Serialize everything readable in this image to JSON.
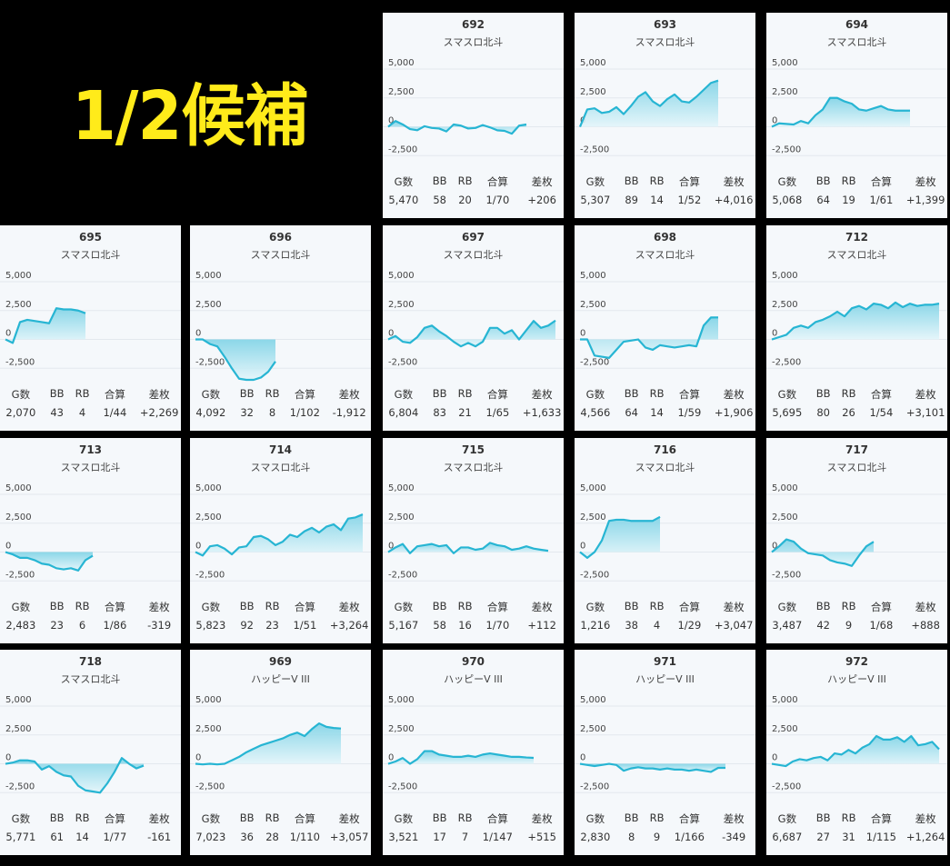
{
  "banner": "1/2候補",
  "stat_labels": [
    "G数",
    "BB",
    "RB",
    "合算",
    "差枚"
  ],
  "axis_ticks": [
    "5,000",
    "2,500",
    "0",
    "-2,500"
  ],
  "colors": {
    "line": "#27b5d3",
    "fill_top": "#7fd3e6",
    "fill_bottom": "#e3f5fa"
  },
  "chart_data": [
    {
      "type": "area",
      "machine": "692",
      "model": "スマスロ北斗",
      "ylim": [
        -3500,
        5000
      ],
      "stats": [
        "5,470",
        "58",
        "20",
        "1/70",
        "+206"
      ],
      "x": [
        0,
        1,
        2,
        3,
        4,
        5,
        6,
        7,
        8,
        9,
        10,
        11,
        12,
        13,
        14,
        15,
        16,
        17,
        18,
        19
      ],
      "values": [
        0,
        500,
        200,
        -200,
        -300,
        50,
        -100,
        -150,
        -400,
        200,
        100,
        -150,
        -100,
        150,
        -50,
        -300,
        -350,
        -600,
        100,
        200
      ]
    },
    {
      "type": "area",
      "machine": "693",
      "model": "スマスロ北斗",
      "ylim": [
        -3500,
        5000
      ],
      "stats": [
        "5,307",
        "89",
        "14",
        "1/52",
        "+4,016"
      ],
      "x": [
        0,
        1,
        2,
        3,
        4,
        5,
        6,
        7,
        8,
        9,
        10,
        11,
        12,
        13,
        14,
        15,
        16,
        17,
        18,
        19
      ],
      "values": [
        0,
        1500,
        1600,
        1200,
        1300,
        1700,
        1100,
        1800,
        2600,
        3000,
        2200,
        1800,
        2400,
        2800,
        2200,
        2100,
        2600,
        3200,
        3800,
        4000
      ]
    },
    {
      "type": "area",
      "machine": "694",
      "model": "スマスロ北斗",
      "ylim": [
        -3500,
        5000
      ],
      "stats": [
        "5,068",
        "64",
        "19",
        "1/61",
        "+1,399"
      ],
      "x": [
        0,
        1,
        2,
        3,
        4,
        5,
        6,
        7,
        8,
        9,
        10,
        11,
        12,
        13,
        14,
        15,
        16,
        17,
        18,
        19
      ],
      "values": [
        0,
        300,
        250,
        200,
        500,
        300,
        1000,
        1500,
        2500,
        2500,
        2200,
        2000,
        1500,
        1400,
        1600,
        1800,
        1500,
        1400,
        1400,
        1400
      ]
    },
    {
      "type": "area",
      "machine": "695",
      "model": "スマスロ北斗",
      "ylim": [
        -3500,
        5000
      ],
      "stats": [
        "2,070",
        "43",
        "4",
        "1/44",
        "+2,269"
      ],
      "x": [
        0,
        1,
        2,
        3,
        4,
        5,
        6,
        7,
        8,
        9,
        10,
        11
      ],
      "values": [
        0,
        -300,
        1500,
        1700,
        1600,
        1500,
        1400,
        2700,
        2600,
        2600,
        2500,
        2269
      ]
    },
    {
      "type": "area",
      "machine": "696",
      "model": "スマスロ北斗",
      "ylim": [
        -3500,
        5000
      ],
      "stats": [
        "4,092",
        "32",
        "8",
        "1/102",
        "-1,912"
      ],
      "x": [
        0,
        1,
        2,
        3,
        4,
        5,
        6,
        7,
        8,
        9,
        10,
        11
      ],
      "values": [
        0,
        0,
        -400,
        -600,
        -1500,
        -2500,
        -3400,
        -3500,
        -3500,
        -3300,
        -2800,
        -1912
      ]
    },
    {
      "type": "area",
      "machine": "697",
      "model": "スマスロ北斗",
      "ylim": [
        -3500,
        5000
      ],
      "stats": [
        "6,804",
        "83",
        "21",
        "1/65",
        "+1,633"
      ],
      "x": [
        0,
        1,
        2,
        3,
        4,
        5,
        6,
        7,
        8,
        9,
        10,
        11,
        12,
        13,
        14,
        15,
        16,
        17,
        18,
        19,
        20,
        21,
        22,
        23
      ],
      "values": [
        0,
        300,
        -200,
        -300,
        200,
        1000,
        1200,
        700,
        300,
        -200,
        -600,
        -300,
        -600,
        -200,
        1000,
        1000,
        500,
        800,
        0,
        800,
        1600,
        1000,
        1200,
        1633
      ]
    },
    {
      "type": "area",
      "machine": "698",
      "model": "スマスロ北斗",
      "ylim": [
        -3500,
        5000
      ],
      "stats": [
        "4,566",
        "64",
        "14",
        "1/59",
        "+1,906"
      ],
      "x": [
        0,
        1,
        2,
        3,
        4,
        5,
        6,
        7,
        8,
        9,
        10,
        11,
        12,
        13,
        14,
        15,
        16,
        17,
        18,
        19
      ],
      "values": [
        0,
        0,
        -1400,
        -1500,
        -1600,
        -900,
        -200,
        -100,
        0,
        -700,
        -900,
        -500,
        -600,
        -700,
        -600,
        -500,
        -600,
        1200,
        1900,
        1906
      ]
    },
    {
      "type": "area",
      "machine": "712",
      "model": "スマスロ北斗",
      "ylim": [
        -3500,
        5000
      ],
      "stats": [
        "5,695",
        "80",
        "26",
        "1/54",
        "+3,101"
      ],
      "x": [
        0,
        1,
        2,
        3,
        4,
        5,
        6,
        7,
        8,
        9,
        10,
        11,
        12,
        13,
        14,
        15,
        16,
        17,
        18,
        19,
        20,
        21,
        22,
        23
      ],
      "values": [
        0,
        200,
        400,
        1000,
        1200,
        1000,
        1500,
        1700,
        2000,
        2400,
        2000,
        2700,
        2900,
        2600,
        3100,
        3000,
        2700,
        3200,
        2800,
        3100,
        2900,
        3000,
        3000,
        3101
      ]
    },
    {
      "type": "area",
      "machine": "713",
      "model": "スマスロ北斗",
      "ylim": [
        -3500,
        5000
      ],
      "stats": [
        "2,483",
        "23",
        "6",
        "1/86",
        "-319"
      ],
      "x": [
        0,
        1,
        2,
        3,
        4,
        5,
        6,
        7,
        8,
        9,
        10,
        11,
        12
      ],
      "values": [
        0,
        -200,
        -500,
        -500,
        -700,
        -1000,
        -1100,
        -1400,
        -1500,
        -1400,
        -1600,
        -700,
        -319
      ]
    },
    {
      "type": "area",
      "machine": "714",
      "model": "スマスロ北斗",
      "ylim": [
        -3500,
        5000
      ],
      "stats": [
        "5,823",
        "92",
        "23",
        "1/51",
        "+3,264"
      ],
      "x": [
        0,
        1,
        2,
        3,
        4,
        5,
        6,
        7,
        8,
        9,
        10,
        11,
        12,
        13,
        14,
        15,
        16,
        17,
        18,
        19,
        20,
        21,
        22,
        23
      ],
      "values": [
        0,
        -300,
        500,
        600,
        300,
        -200,
        400,
        500,
        1300,
        1400,
        1100,
        600,
        900,
        1500,
        1300,
        1800,
        2100,
        1700,
        2200,
        2400,
        1900,
        2900,
        3000,
        3264
      ]
    },
    {
      "type": "area",
      "machine": "715",
      "model": "スマスロ北斗",
      "ylim": [
        -3500,
        5000
      ],
      "stats": [
        "5,167",
        "58",
        "16",
        "1/70",
        "+112"
      ],
      "x": [
        0,
        1,
        2,
        3,
        4,
        5,
        6,
        7,
        8,
        9,
        10,
        11,
        12,
        13,
        14,
        15,
        16,
        17,
        18,
        19,
        20,
        21,
        22
      ],
      "values": [
        0,
        400,
        700,
        -100,
        500,
        600,
        700,
        500,
        600,
        -100,
        400,
        400,
        200,
        300,
        800,
        600,
        500,
        200,
        300,
        500,
        300,
        200,
        112
      ]
    },
    {
      "type": "area",
      "machine": "716",
      "model": "スマスロ北斗",
      "ylim": [
        -3500,
        5000
      ],
      "stats": [
        "1,216",
        "38",
        "4",
        "1/29",
        "+3,047"
      ],
      "x": [
        0,
        1,
        2,
        3,
        4,
        5,
        6,
        7,
        8,
        9,
        10,
        11
      ],
      "values": [
        0,
        -500,
        0,
        1000,
        2700,
        2800,
        2800,
        2700,
        2700,
        2700,
        2700,
        3047
      ]
    },
    {
      "type": "area",
      "machine": "717",
      "model": "スマスロ北斗",
      "ylim": [
        -3500,
        5000
      ],
      "stats": [
        "3,487",
        "42",
        "9",
        "1/68",
        "+888"
      ],
      "x": [
        0,
        1,
        2,
        3,
        4,
        5,
        6,
        7,
        8,
        9,
        10,
        11,
        12,
        13,
        14
      ],
      "values": [
        0,
        500,
        1100,
        900,
        300,
        -100,
        -200,
        -300,
        -700,
        -900,
        -1000,
        -1200,
        -300,
        500,
        888
      ]
    },
    {
      "type": "area",
      "machine": "718",
      "model": "スマスロ北斗",
      "ylim": [
        -3500,
        5000
      ],
      "stats": [
        "5,771",
        "61",
        "14",
        "1/77",
        "-161"
      ],
      "x": [
        0,
        1,
        2,
        3,
        4,
        5,
        6,
        7,
        8,
        9,
        10,
        11,
        12,
        13,
        14,
        15,
        16,
        17,
        18,
        19
      ],
      "values": [
        0,
        100,
        300,
        300,
        200,
        -500,
        -200,
        -700,
        -1000,
        -1100,
        -1900,
        -2300,
        -2400,
        -2500,
        -1700,
        -700,
        500,
        0,
        -400,
        -161
      ]
    },
    {
      "type": "area",
      "machine": "969",
      "model": "ハッピーV III",
      "ylim": [
        -3500,
        5000
      ],
      "stats": [
        "7,023",
        "36",
        "28",
        "1/110",
        "+3,057"
      ],
      "x": [
        0,
        1,
        2,
        3,
        4,
        5,
        6,
        7,
        8,
        9,
        10,
        11,
        12,
        13,
        14,
        15,
        16,
        17,
        18,
        19,
        20
      ],
      "values": [
        0,
        -50,
        0,
        -50,
        0,
        300,
        600,
        1000,
        1300,
        1600,
        1800,
        2000,
        2200,
        2500,
        2700,
        2400,
        3000,
        3500,
        3200,
        3100,
        3057
      ]
    },
    {
      "type": "area",
      "machine": "970",
      "model": "ハッピーV III",
      "ylim": [
        -3500,
        5000
      ],
      "stats": [
        "3,521",
        "17",
        "7",
        "1/147",
        "+515"
      ],
      "x": [
        0,
        1,
        2,
        3,
        4,
        5,
        6,
        7,
        8,
        9,
        10,
        11,
        12,
        13,
        14,
        15,
        16,
        17,
        18,
        19,
        20
      ],
      "values": [
        0,
        200,
        500,
        0,
        400,
        1100,
        1100,
        800,
        700,
        600,
        600,
        700,
        600,
        800,
        900,
        800,
        700,
        600,
        600,
        550,
        515
      ]
    },
    {
      "type": "area",
      "machine": "971",
      "model": "ハッピーV III",
      "ylim": [
        -3500,
        5000
      ],
      "stats": [
        "2,830",
        "8",
        "9",
        "1/166",
        "-349"
      ],
      "x": [
        0,
        1,
        2,
        3,
        4,
        5,
        6,
        7,
        8,
        9,
        10,
        11,
        12,
        13,
        14,
        15,
        16,
        17,
        18,
        19,
        20
      ],
      "values": [
        0,
        -100,
        -200,
        -100,
        0,
        -100,
        -600,
        -400,
        -300,
        -400,
        -400,
        -500,
        -400,
        -500,
        -500,
        -600,
        -500,
        -600,
        -700,
        -350,
        -349
      ]
    },
    {
      "type": "area",
      "machine": "972",
      "model": "ハッピーV III",
      "ylim": [
        -3500,
        5000
      ],
      "stats": [
        "6,687",
        "27",
        "31",
        "1/115",
        "+1,264"
      ],
      "x": [
        0,
        1,
        2,
        3,
        4,
        5,
        6,
        7,
        8,
        9,
        10,
        11,
        12,
        13,
        14,
        15,
        16,
        17,
        18,
        19,
        20,
        21,
        22,
        23,
        24
      ],
      "values": [
        0,
        -100,
        -200,
        200,
        400,
        300,
        500,
        600,
        300,
        900,
        800,
        1200,
        900,
        1400,
        1700,
        2400,
        2100,
        2100,
        2300,
        1900,
        2400,
        1600,
        1700,
        1900,
        1264
      ]
    }
  ]
}
